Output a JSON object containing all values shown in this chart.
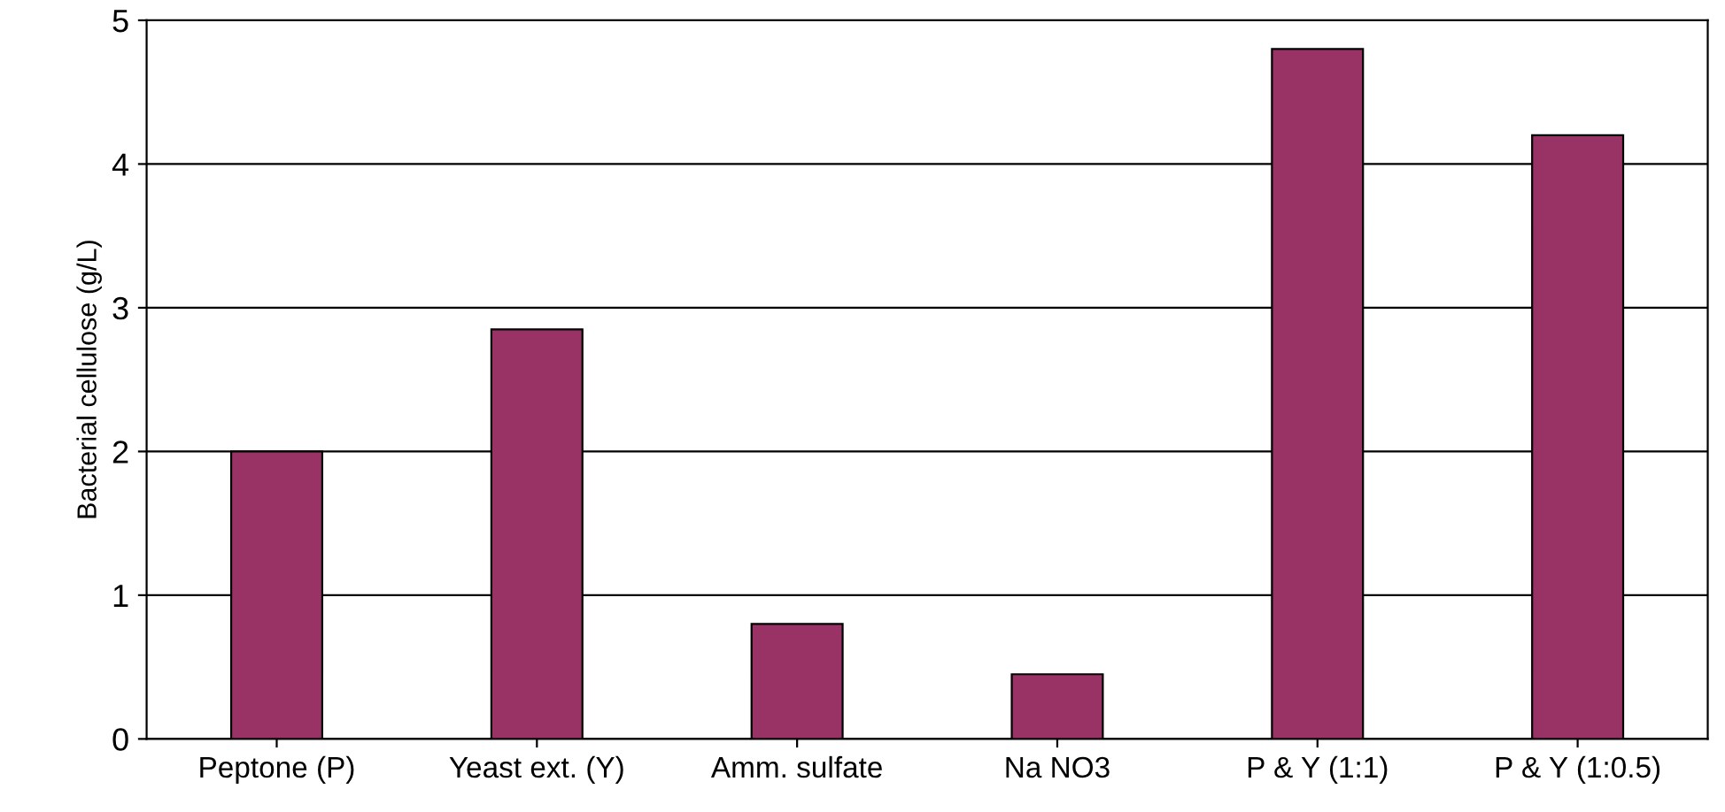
{
  "chart_data": {
    "type": "bar",
    "ylabel": "Bacterial cellulose (g/L)",
    "categories": [
      "Peptone (P)",
      "Yeast ext. (Y)",
      "Amm. sulfate",
      "Na NO3",
      "P & Y (1:1)",
      "P & Y (1:0.5)"
    ],
    "values": [
      2.0,
      2.85,
      0.8,
      0.45,
      4.8,
      4.2
    ],
    "color": "#993366",
    "ylim": [
      0,
      5
    ],
    "yticks": [
      0,
      1,
      2,
      3,
      4,
      5
    ],
    "grid": "y"
  }
}
